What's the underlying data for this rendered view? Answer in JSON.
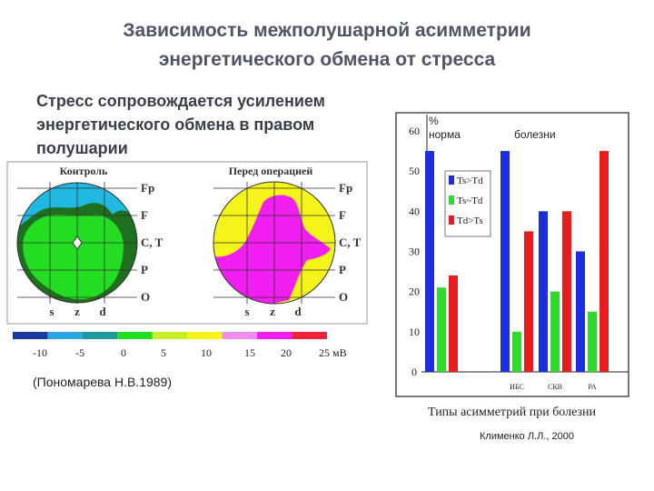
{
  "slide": {
    "title_line1": "Зависимость межполушарной асимметрии",
    "title_line2": "энергетического обмена от стресса",
    "subtitle": "Стресс сопровождается усилением энергетического обмена в правом полушарии",
    "credit": "(Пономарева Н.В.1989)",
    "caption": "Типы асимметрий при болезни",
    "author": "Клименко Л.Л., 2000"
  },
  "maps": {
    "left_title": "Контроль",
    "right_title": "Перед операцией",
    "row_labels": [
      "Fp",
      "F",
      "C, T",
      "P",
      "O"
    ],
    "bottom_labels": [
      "s",
      "z",
      "d"
    ],
    "colors": {
      "green": "#22dd22",
      "darkgreen": "#1e6f1e",
      "magenta": "#f01ef0",
      "yellow": "#f4f41a",
      "cyan": "#20b8e0",
      "grid": "#333333"
    }
  },
  "scale": {
    "colors": [
      "#1a3aa0",
      "#2aa6e0",
      "#1e9a9a",
      "#22dd22",
      "#c4f02a",
      "#f4f41a",
      "#f08cf0",
      "#f01ef0",
      "#f0233b"
    ],
    "tick_labels": [
      "-10",
      "-5",
      "0",
      "5",
      "10",
      "15",
      "20",
      "25"
    ],
    "unit": "мВ"
  },
  "chart_data": {
    "type": "bar",
    "y_unit": "%",
    "ylim": [
      0,
      60
    ],
    "yticks": [
      "0",
      "10",
      "20",
      "30",
      "40",
      "50",
      "60"
    ],
    "group_labels": [
      "норма",
      "болезни"
    ],
    "categories": [
      "норма",
      "ИБС",
      "СКВ",
      "РА"
    ],
    "category_labels": [
      "",
      "ИБС",
      "СКВ",
      "РА"
    ],
    "series": [
      {
        "name": "Ts>Td",
        "color": "#1c2fe0",
        "values": [
          55,
          55,
          40,
          30
        ]
      },
      {
        "name": "Ts~Td",
        "color": "#30d830",
        "values": [
          21,
          10,
          20,
          15
        ]
      },
      {
        "name": "Td>Ts",
        "color": "#e81c1c",
        "values": [
          24,
          35,
          40,
          55
        ]
      }
    ],
    "legend_position": "top-left"
  }
}
